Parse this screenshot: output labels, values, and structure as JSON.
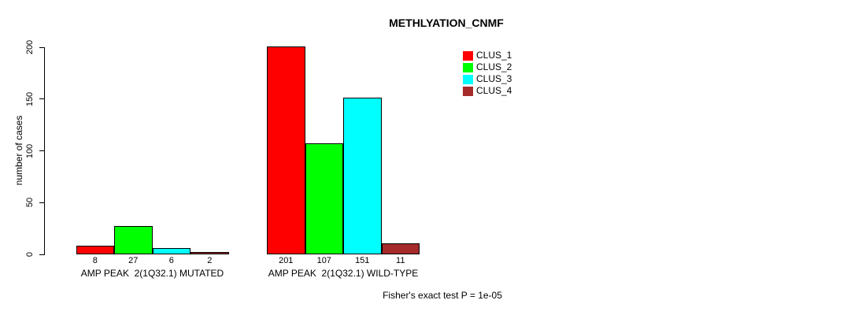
{
  "chart_data": {
    "type": "bar",
    "title": "METHLYATION_CNMF",
    "ylabel": "number of cases",
    "xlabel": "",
    "ylim": [
      0,
      200
    ],
    "yticks": [
      0,
      50,
      100,
      150,
      200
    ],
    "grid": false,
    "legend_position": "top-right",
    "background_color": "#FFFFFF",
    "bar_border_color": "#000000",
    "categories": [
      "AMP PEAK  2(1Q32.1) MUTATED",
      "AMP PEAK  2(1Q32.1) WILD-TYPE"
    ],
    "series": [
      {
        "name": "CLUS_1",
        "color": "#FF0000",
        "values": [
          8,
          201
        ]
      },
      {
        "name": "CLUS_2",
        "color": "#00FF00",
        "values": [
          27,
          107
        ]
      },
      {
        "name": "CLUS_3",
        "color": "#00FFFF",
        "values": [
          6,
          151
        ]
      },
      {
        "name": "CLUS_4",
        "color": "#A52A2A",
        "values": [
          2,
          11
        ]
      }
    ],
    "annotation": "Fisher's exact test P = 1e-05"
  }
}
